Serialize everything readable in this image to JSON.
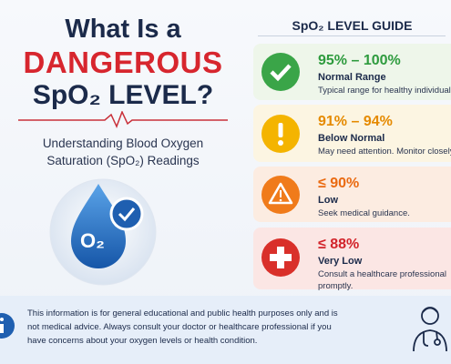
{
  "header": {
    "title_line1": "What Is a",
    "title_line2": "DANGEROUS",
    "title_line3": "SpO₂ LEVEL?",
    "subtitle": "Understanding Blood Oxygen Saturation (SpO₂) Readings",
    "icon_label": "O₂"
  },
  "guide": {
    "title": "SpO₂ LEVEL GUIDE",
    "cards": [
      {
        "range": "95% – 100%",
        "label": "Normal Range",
        "description": "Typical range for healthy individuals"
      },
      {
        "range": "91% – 94%",
        "label": "Below Normal",
        "description": "May need attention. Monitor closely."
      },
      {
        "range": "≤ 90%",
        "label": "Low",
        "description": "Seek medical guidance."
      },
      {
        "range": "≤ 88%",
        "label": "Very Low",
        "description": "Consult a healthcare professional promptly."
      }
    ]
  },
  "footer": {
    "text": "This information is for general educational and public health purposes only and is not medical advice. Always consult your doctor or healthcare professional if you have concerns about your oxygen levels or health condition."
  }
}
